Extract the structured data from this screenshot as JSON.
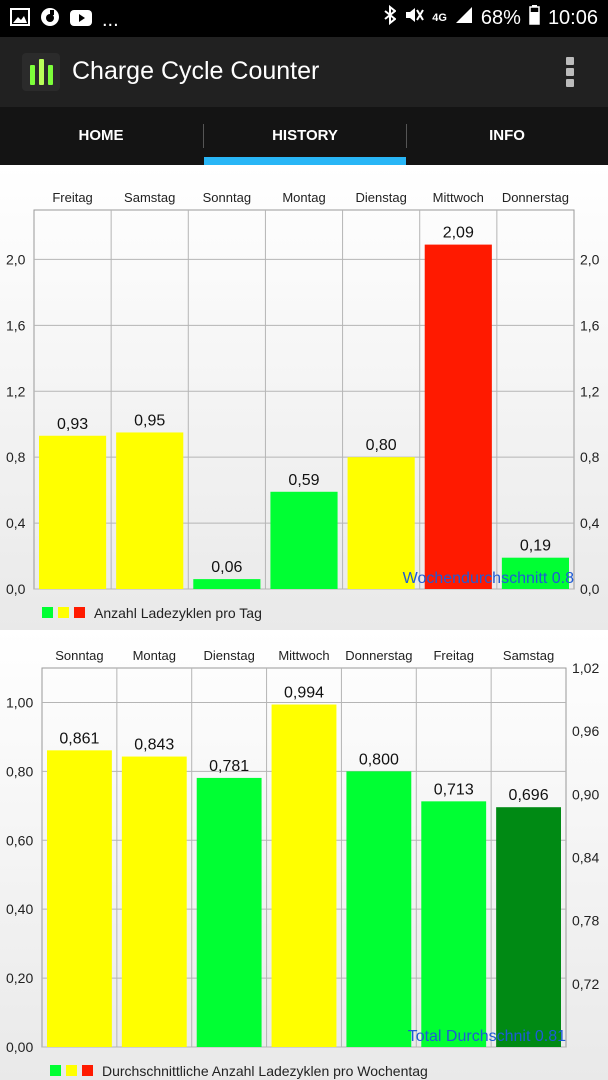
{
  "status_bar": {
    "left_icons": [
      "image-icon",
      "vodafone-icon",
      "youtube-icon"
    ],
    "notif_more": "...",
    "net_type": "4G",
    "battery_percent": "68%",
    "time": "10:06"
  },
  "app_bar": {
    "title": "Charge Cycle Counter"
  },
  "tabs": [
    {
      "label": "HOME"
    },
    {
      "label": "HISTORY",
      "selected": true
    },
    {
      "label": "INFO"
    }
  ],
  "colors": {
    "yellow": "#ffff00",
    "green": "#00ff33",
    "red": "#ff1a00",
    "dark_green": "#008a14",
    "accent": "#29b6f6",
    "annotation_blue": "#1e5bd6"
  },
  "chart_data": [
    {
      "type": "bar",
      "categories": [
        "Freitag",
        "Samstag",
        "Sonntag",
        "Montag",
        "Dienstag",
        "Mittwoch",
        "Donnerstag"
      ],
      "values": [
        0.93,
        0.95,
        0.06,
        0.59,
        0.8,
        2.09,
        0.19
      ],
      "value_labels": [
        "0,93",
        "0,95",
        "0,06",
        "0,59",
        "0,80",
        "2,09",
        "0,19"
      ],
      "bar_colors": [
        "#ffff00",
        "#ffff00",
        "#00ff33",
        "#00ff33",
        "#ffff00",
        "#ff1a00",
        "#00ff33"
      ],
      "ylim": [
        0,
        2.3
      ],
      "left_ticks": [
        0,
        0.4,
        0.8,
        1.2,
        1.6,
        2.0
      ],
      "left_tick_labels": [
        "0,0",
        "0,4",
        "0,8",
        "1,2",
        "1,6",
        "2,0"
      ],
      "right_ticks": [
        0,
        0.4,
        0.8,
        1.2,
        1.6,
        2.0
      ],
      "right_tick_labels": [
        "0,0",
        "0,4",
        "0,8",
        "1,2",
        "1,6",
        "2,0"
      ],
      "annotation": "Wochendurchschnitt 0.8",
      "legend": {
        "swatches": [
          "#00ff33",
          "#ffff00",
          "#ff1a00"
        ],
        "label": "Anzahl Ladezyklen pro Tag"
      }
    },
    {
      "type": "bar",
      "categories": [
        "Sonntag",
        "Montag",
        "Dienstag",
        "Mittwoch",
        "Donnerstag",
        "Freitag",
        "Samstag"
      ],
      "values": [
        0.861,
        0.843,
        0.781,
        0.994,
        0.8,
        0.713,
        0.696
      ],
      "value_labels": [
        "0,861",
        "0,843",
        "0,781",
        "0,994",
        "0,800",
        "0,713",
        "0,696"
      ],
      "bar_colors": [
        "#ffff00",
        "#ffff00",
        "#00ff33",
        "#ffff00",
        "#00ff33",
        "#00ff33",
        "#008a14"
      ],
      "ylim": [
        0,
        1.1
      ],
      "left_ticks": [
        0,
        0.2,
        0.4,
        0.6,
        0.8,
        1.0
      ],
      "left_tick_labels": [
        "0,00",
        "0,20",
        "0,40",
        "0,60",
        "0,80",
        "1,00"
      ],
      "right_ylim": [
        0.66,
        1.02
      ],
      "right_ticks": [
        0.72,
        0.78,
        0.84,
        0.9,
        0.96,
        1.02
      ],
      "right_tick_labels": [
        "0,72",
        "0,78",
        "0,84",
        "0,90",
        "0,96",
        "1,02"
      ],
      "annotation": "Total Durchschnit 0.81",
      "legend": {
        "swatches": [
          "#00ff33",
          "#ffff00",
          "#ff1a00"
        ],
        "label": "Durchschnittliche Anzahl Ladezyklen pro Wochentag"
      }
    }
  ]
}
